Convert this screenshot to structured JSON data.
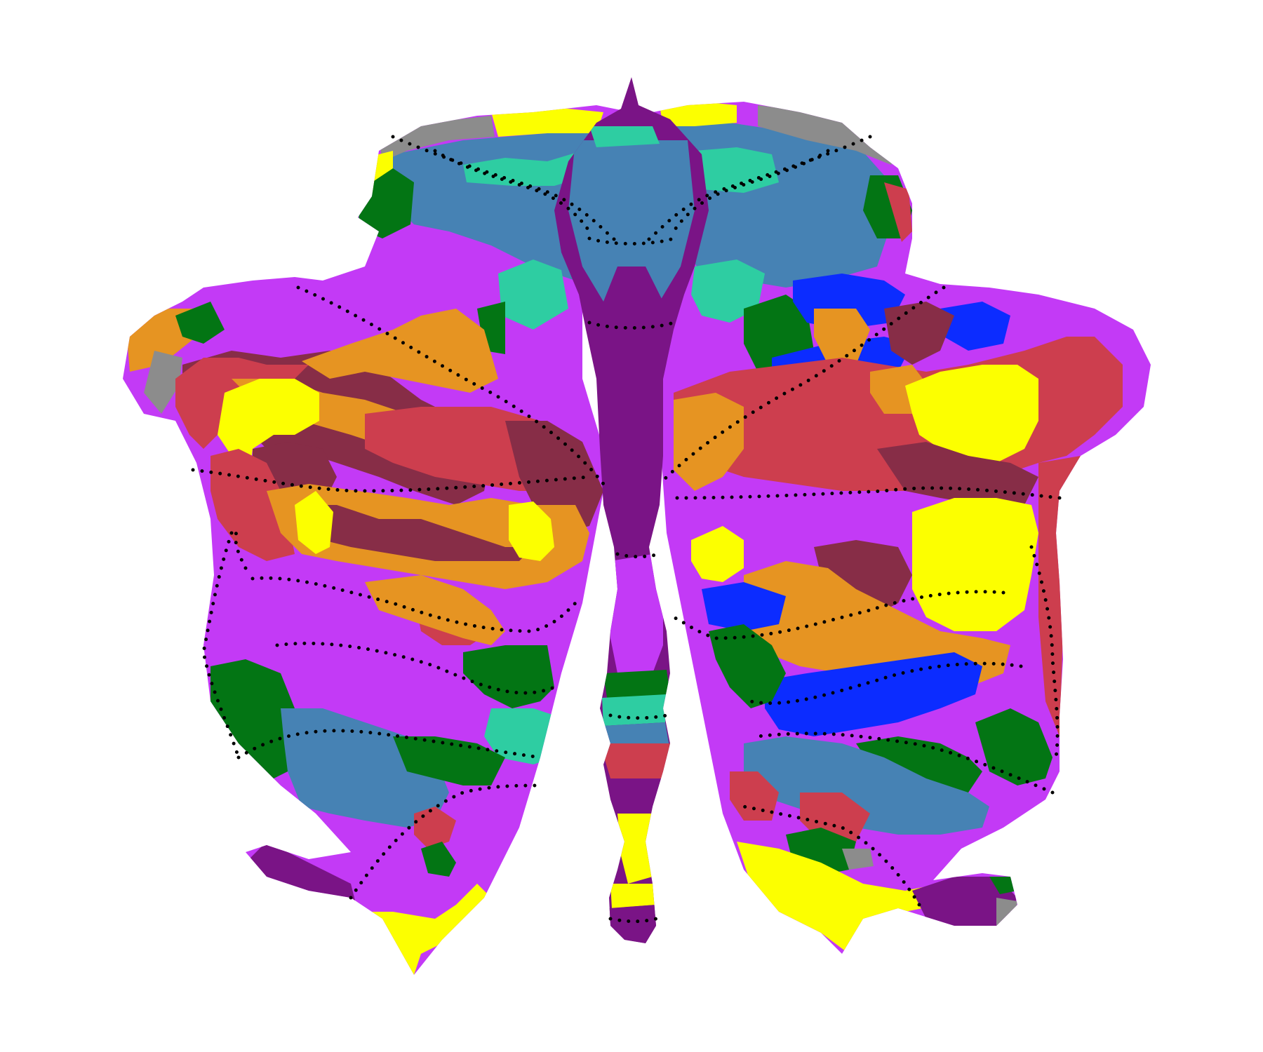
{
  "figure": {
    "kind": "cerebellar-flatmap-parcellation",
    "background_color": "#ffffff",
    "boundary_line_color": "#000000",
    "boundary_line_style": "dotted"
  },
  "palette": {
    "purple_vermis": "#7a1486",
    "magenta": "#c33af6",
    "steel_blue": "#4682b4",
    "teal": "#2ecda2",
    "green": "#037514",
    "red": "#cd3e4e",
    "maroon": "#872d47",
    "orange": "#e69422",
    "yellow": "#fcff00",
    "blue": "#0c2cff",
    "gray_noise": "#8c8c8c"
  }
}
